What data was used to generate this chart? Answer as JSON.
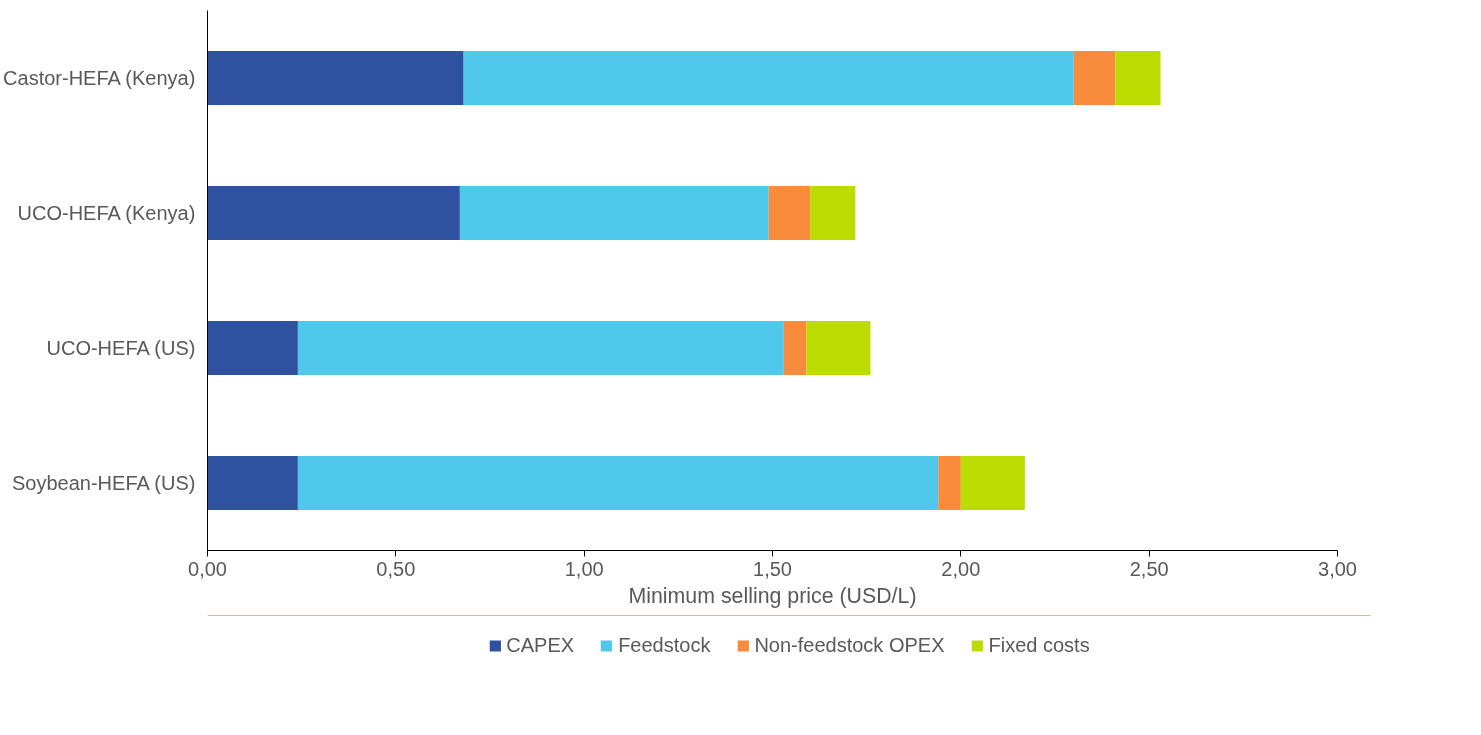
{
  "chart_data": {
    "type": "bar",
    "orientation": "horizontal",
    "stacked": true,
    "categories": [
      "Castor-HEFA (Kenya)",
      "UCO-HEFA (Kenya)",
      "UCO-HEFA (US)",
      "Soybean-HEFA (US)"
    ],
    "series": [
      {
        "name": "CAPEX",
        "color": "#2f52a0",
        "values": [
          0.68,
          0.67,
          0.24,
          0.24
        ]
      },
      {
        "name": "Feedstock",
        "color": "#4fc8ec",
        "values": [
          1.62,
          0.82,
          1.29,
          1.7
        ]
      },
      {
        "name": "Non-feedstock OPEX",
        "color": "#f98b3c",
        "values": [
          0.11,
          0.11,
          0.06,
          0.06
        ]
      },
      {
        "name": "Fixed costs",
        "color": "#bcdb00",
        "values": [
          0.12,
          0.12,
          0.17,
          0.17
        ]
      }
    ],
    "xlabel": "Minimum selling price (USD/L)",
    "xlim": [
      0,
      3
    ],
    "xticks": [
      {
        "value": 0,
        "label": "0,00"
      },
      {
        "value": 0.5,
        "label": "0,50"
      },
      {
        "value": 1,
        "label": "1,00"
      },
      {
        "value": 1.5,
        "label": "1,50"
      },
      {
        "value": 2,
        "label": "2,00"
      },
      {
        "value": 2.5,
        "label": "2,50"
      },
      {
        "value": 3,
        "label": "3,00"
      }
    ],
    "grid": false,
    "legend": "bottom"
  }
}
